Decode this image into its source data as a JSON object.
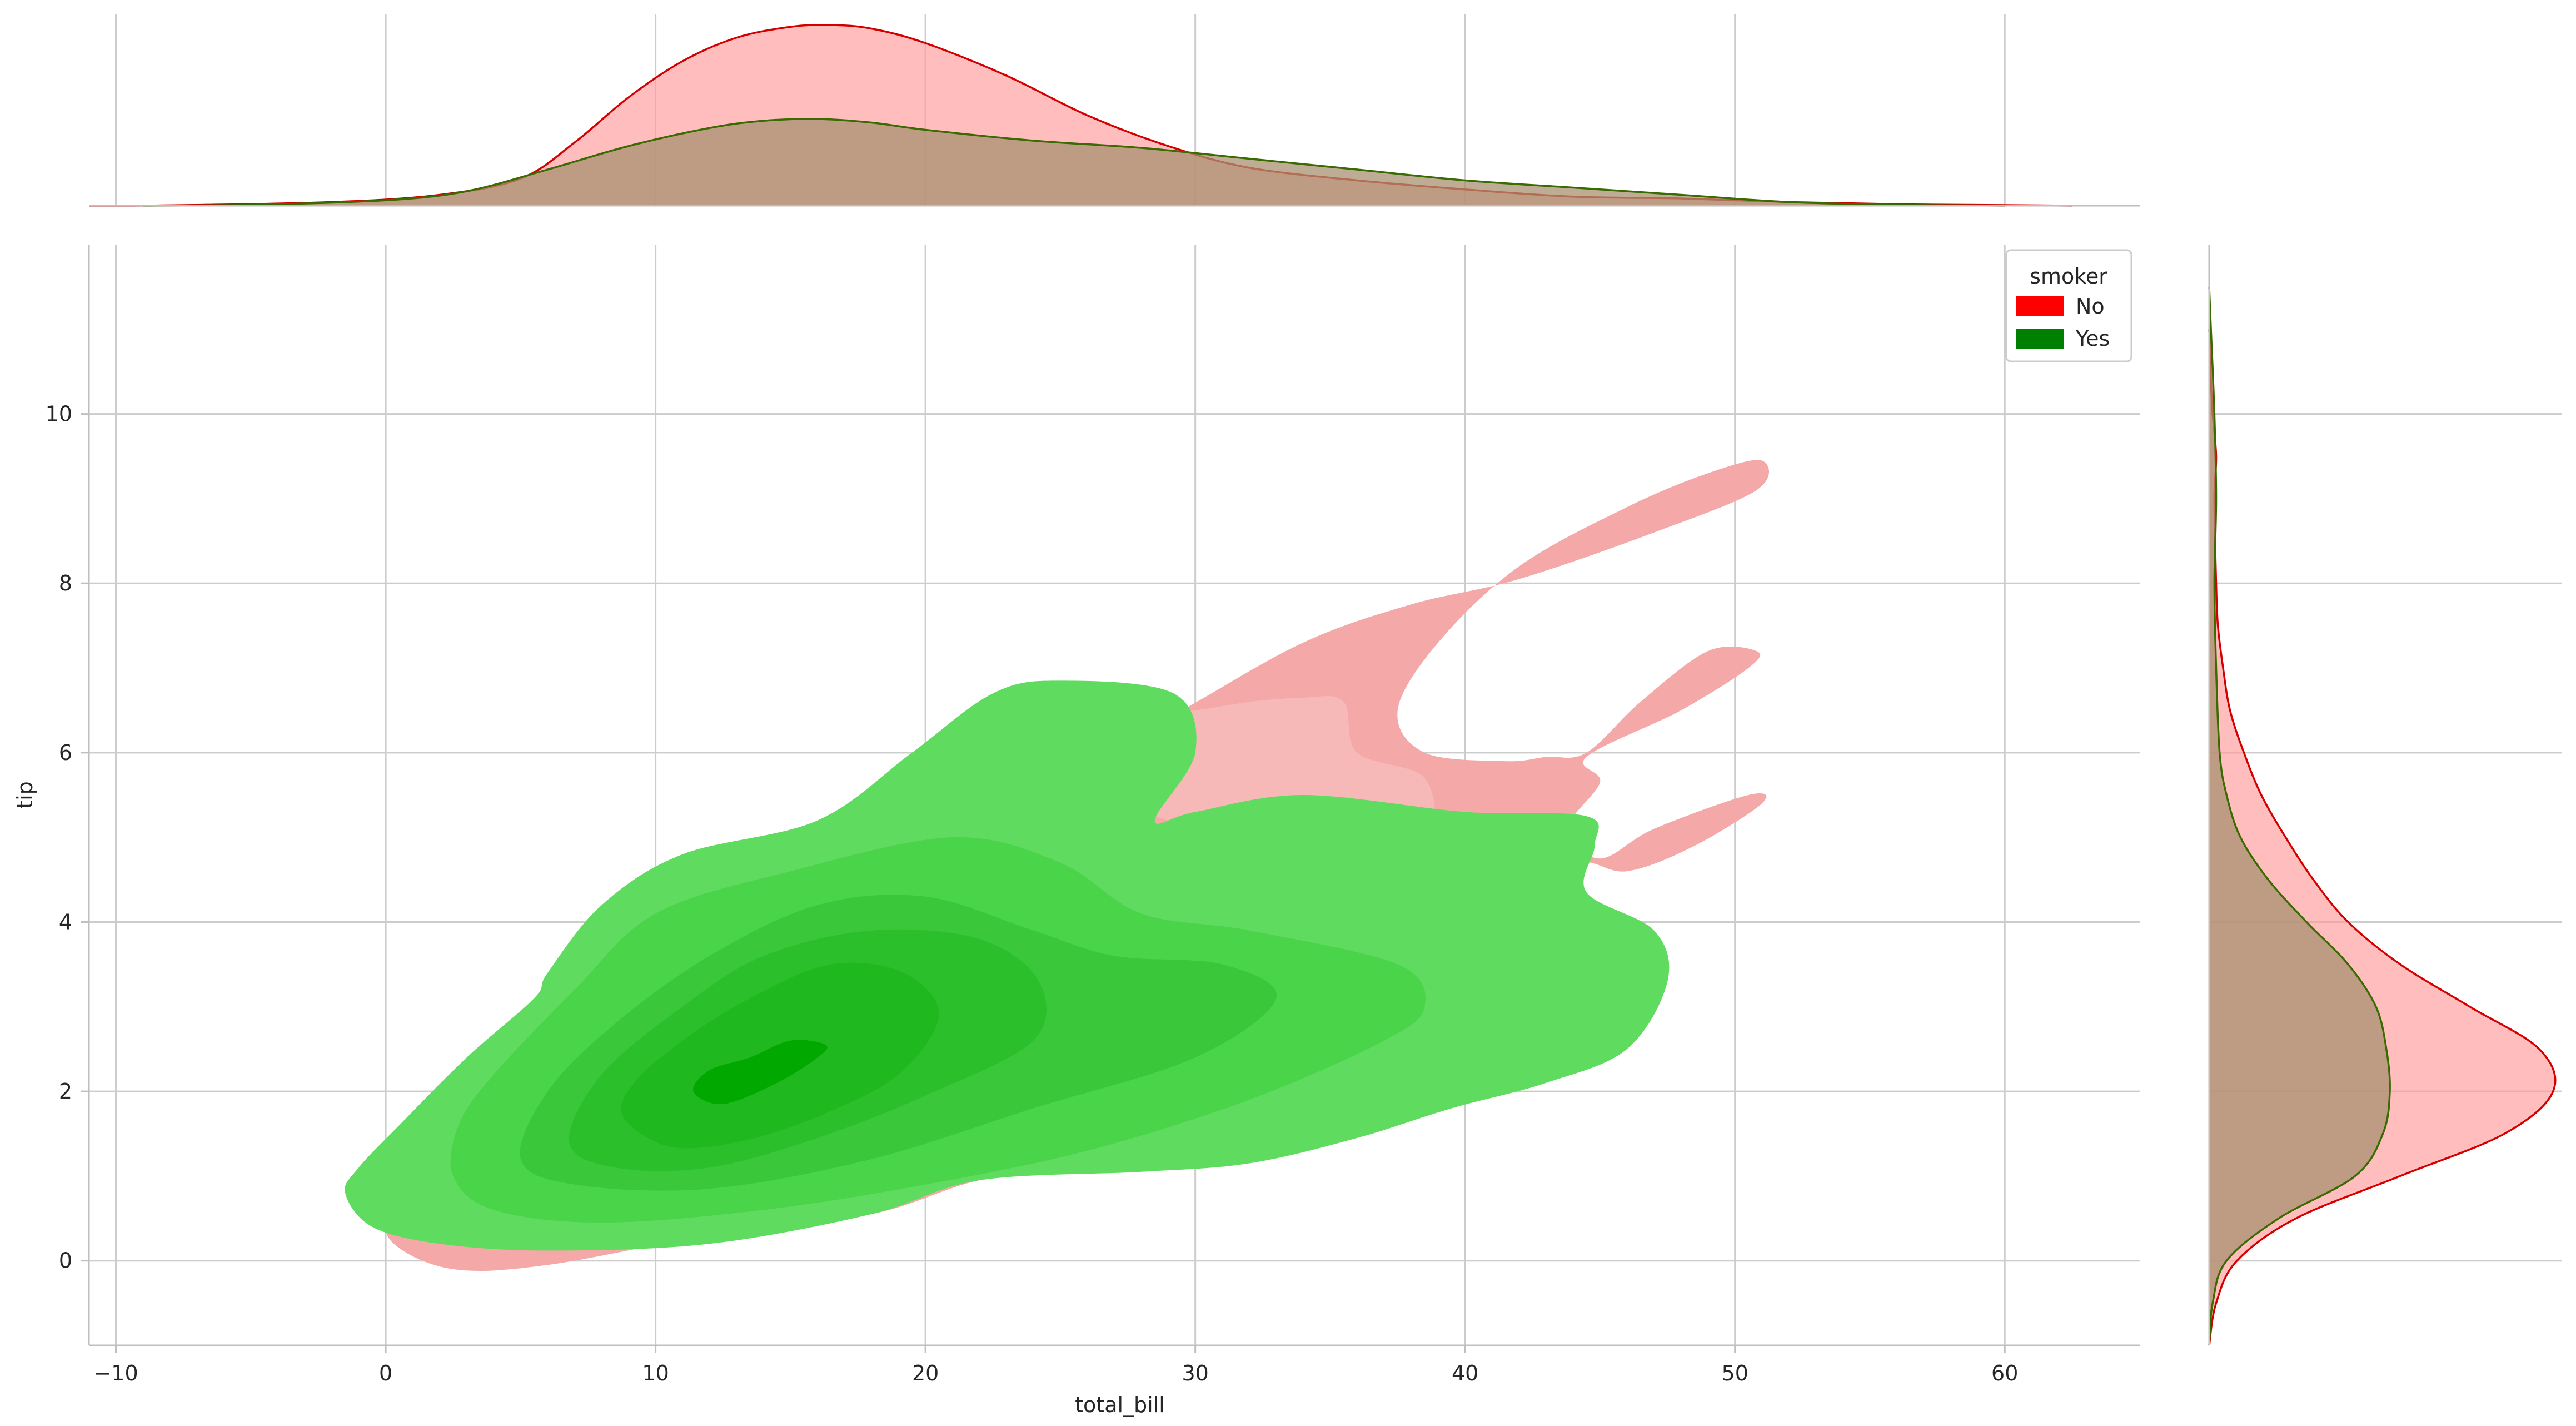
{
  "chart_data": {
    "type": "kde-jointplot",
    "title": "",
    "xlabel": "total_bill",
    "ylabel": "tip",
    "xlim": [
      -11,
      65
    ],
    "ylim": [
      -1,
      12
    ],
    "xticks": [
      -10,
      0,
      10,
      20,
      30,
      40,
      50,
      60
    ],
    "yticks": [
      0,
      2,
      4,
      6,
      8,
      10
    ],
    "x_tick_labels": [
      "−10",
      "0",
      "10",
      "20",
      "30",
      "40",
      "50",
      "60"
    ],
    "y_tick_labels": [
      "0",
      "2",
      "4",
      "6",
      "8",
      "10"
    ],
    "grid": true,
    "legend": {
      "title": "smoker",
      "placement": "top-right",
      "entries": [
        {
          "label": "No",
          "color": "#ff0000"
        },
        {
          "label": "Yes",
          "color": "#008000"
        }
      ]
    },
    "series": [
      {
        "name": "No",
        "line_color": "#d40000",
        "fill_color": "#ff9a9a",
        "joint_fill": "#f4a8a8",
        "joint_fill_inner": "#f7b8b8",
        "joint_levels": [
          {
            "level": 1,
            "points": [
              [
                0.3,
                0.2
              ],
              [
                2.5,
                -0.1
              ],
              [
                6,
                -0.05
              ],
              [
                12,
                0.3
              ],
              [
                18,
                0.55
              ],
              [
                22,
                0.95
              ],
              [
                26,
                1.1
              ],
              [
                29,
                1.2
              ],
              [
                33,
                1.9
              ],
              [
                36,
                2.6
              ],
              [
                38,
                3.4
              ],
              [
                41,
                4.2
              ],
              [
                44,
                4.7
              ],
              [
                46,
                4.6
              ],
              [
                48.5,
                4.9
              ],
              [
                51,
                5.4
              ],
              [
                50.5,
                5.5
              ],
              [
                47,
                5.1
              ],
              [
                45,
                4.75
              ],
              [
                43.8,
                5.1
              ],
              [
                45,
                5.65
              ],
              [
                44.5,
                5.95
              ],
              [
                48,
                6.5
              ],
              [
                50.5,
                7.0
              ],
              [
                50.8,
                7.2
              ],
              [
                49,
                7.2
              ],
              [
                46.5,
                6.6
              ],
              [
                44.5,
                6.0
              ],
              [
                43,
                5.95
              ],
              [
                41.5,
                5.9
              ],
              [
                38.5,
                6.0
              ],
              [
                37.5,
                6.5
              ],
              [
                39,
                7.3
              ],
              [
                42,
                8.2
              ],
              [
                46,
                8.9
              ],
              [
                49,
                9.3
              ],
              [
                51,
                9.45
              ],
              [
                50.8,
                9.1
              ],
              [
                47,
                8.6
              ],
              [
                42,
                8.05
              ],
              [
                38,
                7.75
              ],
              [
                34,
                7.3
              ],
              [
                29.5,
                6.5
              ],
              [
                26,
                5.9
              ],
              [
                21,
                5.5
              ],
              [
                16,
                5.0
              ],
              [
                11,
                4.3
              ],
              [
                7,
                3.1
              ],
              [
                4,
                2.1
              ],
              [
                1.5,
                1.6
              ],
              [
                0.5,
                1.2
              ],
              [
                0,
                0.6
              ]
            ]
          },
          {
            "level": 2,
            "points": [
              [
                26,
                6.2
              ],
              [
                31,
                6.55
              ],
              [
                34,
                6.65
              ],
              [
                35.5,
                6.6
              ],
              [
                36,
                6.0
              ],
              [
                38.5,
                5.7
              ],
              [
                38.5,
                5.0
              ],
              [
                35,
                4.8
              ],
              [
                31,
                5.0
              ],
              [
                27,
                5.5
              ]
            ]
          }
        ],
        "marginal_x": [
          [
            -11,
            0
          ],
          [
            -8,
            0.002
          ],
          [
            -2,
            0.02
          ],
          [
            2,
            0.06
          ],
          [
            5,
            0.15
          ],
          [
            7,
            0.35
          ],
          [
            9,
            0.6
          ],
          [
            11,
            0.8
          ],
          [
            13,
            0.93
          ],
          [
            15,
            0.99
          ],
          [
            16.5,
            1.0
          ],
          [
            18,
            0.98
          ],
          [
            20,
            0.9
          ],
          [
            23,
            0.72
          ],
          [
            26,
            0.5
          ],
          [
            29,
            0.33
          ],
          [
            32,
            0.21
          ],
          [
            36,
            0.14
          ],
          [
            40,
            0.09
          ],
          [
            44,
            0.05
          ],
          [
            48,
            0.04
          ],
          [
            52,
            0.02
          ],
          [
            56,
            0.008
          ],
          [
            60,
            0.003
          ],
          [
            62.5,
            0
          ]
        ],
        "marginal_y": [
          [
            -1,
            0
          ],
          [
            -0.5,
            0.02
          ],
          [
            0,
            0.08
          ],
          [
            0.5,
            0.25
          ],
          [
            1,
            0.55
          ],
          [
            1.5,
            0.85
          ],
          [
            2,
            0.99
          ],
          [
            2.5,
            0.95
          ],
          [
            3,
            0.75
          ],
          [
            3.5,
            0.55
          ],
          [
            4,
            0.4
          ],
          [
            4.5,
            0.3
          ],
          [
            5,
            0.22
          ],
          [
            5.5,
            0.15
          ],
          [
            6,
            0.1
          ],
          [
            6.5,
            0.06
          ],
          [
            7,
            0.04
          ],
          [
            7.5,
            0.025
          ],
          [
            8,
            0.02
          ],
          [
            9,
            0.015
          ],
          [
            9.5,
            0.02
          ],
          [
            10,
            0.01
          ],
          [
            10.5,
            0.004
          ],
          [
            11,
            0
          ]
        ]
      },
      {
        "name": "Yes",
        "line_color": "#3a6b00",
        "fill_color": "#a89270",
        "joint_levels": [
          {
            "level": 1,
            "color": "#5fdc5f",
            "points": [
              [
                -1.5,
                0.8
              ],
              [
                -0.5,
                0.4
              ],
              [
                2,
                0.2
              ],
              [
                6,
                0.12
              ],
              [
                12,
                0.2
              ],
              [
                18,
                0.55
              ],
              [
                22,
                0.95
              ],
              [
                28,
                1.05
              ],
              [
                32,
                1.15
              ],
              [
                36,
                1.45
              ],
              [
                39.5,
                1.8
              ],
              [
                43,
                2.1
              ],
              [
                46,
                2.5
              ],
              [
                47.5,
                3.3
              ],
              [
                47,
                3.9
              ],
              [
                44.5,
                4.35
              ],
              [
                44.8,
                4.9
              ],
              [
                44.5,
                5.25
              ],
              [
                40,
                5.3
              ],
              [
                34,
                5.5
              ],
              [
                30,
                5.3
              ],
              [
                28.5,
                5.2
              ],
              [
                30,
                6.0
              ],
              [
                29.2,
                6.7
              ],
              [
                25,
                6.85
              ],
              [
                22.5,
                6.7
              ],
              [
                19.5,
                6.0
              ],
              [
                16,
                5.2
              ],
              [
                11,
                4.8
              ],
              [
                8,
                4.2
              ],
              [
                6,
                3.4
              ],
              [
                5.5,
                3.1
              ],
              [
                3,
                2.4
              ],
              [
                0.5,
                1.6
              ],
              [
                -1,
                1.1
              ]
            ]
          },
          {
            "level": 2,
            "color": "#4ad44a",
            "points": [
              [
                2.5,
                1.0
              ],
              [
                4,
                0.6
              ],
              [
                8,
                0.45
              ],
              [
                14,
                0.6
              ],
              [
                20,
                0.9
              ],
              [
                26,
                1.3
              ],
              [
                32,
                1.9
              ],
              [
                37,
                2.6
              ],
              [
                38.5,
                3.0
              ],
              [
                37.5,
                3.5
              ],
              [
                32,
                3.9
              ],
              [
                28,
                4.1
              ],
              [
                25,
                4.7
              ],
              [
                21,
                5.0
              ],
              [
                15,
                4.6
              ],
              [
                10,
                4.1
              ],
              [
                7,
                3.2
              ],
              [
                4,
                2.2
              ],
              [
                2.7,
                1.6
              ]
            ]
          },
          {
            "level": 3,
            "color": "#3ac83a",
            "points": [
              [
                5,
                1.2
              ],
              [
                7,
                0.9
              ],
              [
                12,
                0.85
              ],
              [
                18,
                1.2
              ],
              [
                24,
                1.8
              ],
              [
                30,
                2.4
              ],
              [
                33,
                3.1
              ],
              [
                31,
                3.5
              ],
              [
                27,
                3.6
              ],
              [
                24,
                3.9
              ],
              [
                20,
                4.3
              ],
              [
                16,
                4.2
              ],
              [
                12,
                3.6
              ],
              [
                8.5,
                2.8
              ],
              [
                6,
                2.0
              ]
            ]
          },
          {
            "level": 4,
            "color": "#2cbf2c",
            "points": [
              [
                6.8,
                1.4
              ],
              [
                8.5,
                1.1
              ],
              [
                12,
                1.1
              ],
              [
                16,
                1.45
              ],
              [
                20,
                1.95
              ],
              [
                24,
                2.6
              ],
              [
                24.2,
                3.3
              ],
              [
                22,
                3.8
              ],
              [
                18,
                3.9
              ],
              [
                14,
                3.6
              ],
              [
                11,
                3.0
              ],
              [
                8,
                2.2
              ]
            ]
          },
          {
            "level": 5,
            "color": "#1fb81f",
            "points": [
              [
                8.8,
                1.7
              ],
              [
                10.5,
                1.35
              ],
              [
                13,
                1.4
              ],
              [
                16,
                1.7
              ],
              [
                19,
                2.2
              ],
              [
                20.5,
                2.9
              ],
              [
                19.2,
                3.4
              ],
              [
                16.5,
                3.5
              ],
              [
                13.5,
                3.1
              ],
              [
                11,
                2.6
              ],
              [
                9.2,
                2.1
              ]
            ]
          },
          {
            "level": 6,
            "color": "#00a800",
            "points": [
              [
                11.4,
                2.0
              ],
              [
                12.5,
                1.85
              ],
              [
                14.5,
                2.1
              ],
              [
                16,
                2.4
              ],
              [
                16.3,
                2.55
              ],
              [
                15,
                2.6
              ],
              [
                13.5,
                2.4
              ],
              [
                12,
                2.25
              ]
            ]
          }
        ],
        "marginal_x": [
          [
            -9,
            0
          ],
          [
            -5,
            0.005
          ],
          [
            0,
            0.03
          ],
          [
            3,
            0.08
          ],
          [
            6,
            0.2
          ],
          [
            9,
            0.33
          ],
          [
            12,
            0.43
          ],
          [
            14,
            0.47
          ],
          [
            16,
            0.48
          ],
          [
            18,
            0.46
          ],
          [
            20,
            0.42
          ],
          [
            24,
            0.36
          ],
          [
            28,
            0.32
          ],
          [
            32,
            0.26
          ],
          [
            36,
            0.2
          ],
          [
            40,
            0.14
          ],
          [
            44,
            0.1
          ],
          [
            48,
            0.06
          ],
          [
            52,
            0.02
          ],
          [
            56,
            0.005
          ],
          [
            60,
            0
          ]
        ],
        "marginal_y": [
          [
            -1,
            0
          ],
          [
            -0.5,
            0.01
          ],
          [
            0,
            0.05
          ],
          [
            0.5,
            0.2
          ],
          [
            1,
            0.42
          ],
          [
            1.5,
            0.5
          ],
          [
            2,
            0.52
          ],
          [
            2.5,
            0.51
          ],
          [
            3,
            0.48
          ],
          [
            3.5,
            0.4
          ],
          [
            4,
            0.28
          ],
          [
            4.5,
            0.17
          ],
          [
            5,
            0.09
          ],
          [
            5.5,
            0.05
          ],
          [
            6,
            0.03
          ],
          [
            7,
            0.02
          ],
          [
            8,
            0.015
          ],
          [
            9,
            0.02
          ],
          [
            10,
            0.015
          ],
          [
            11,
            0.005
          ],
          [
            11.5,
            0
          ]
        ]
      }
    ]
  }
}
